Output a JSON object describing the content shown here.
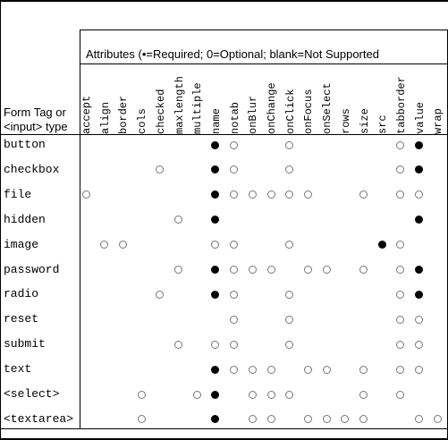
{
  "caption": "Attributes (•=Required; 0=Optional; blank=Not Supported",
  "left_header": [
    "Form Tag or",
    "<input> type"
  ],
  "attributes": [
    "accept",
    "align",
    "border",
    "cols",
    "checked",
    "maxlength",
    "multiple",
    "name",
    "notab",
    "onBlur",
    "onChange",
    "onClick",
    "onFocus",
    "onSelect",
    "rows",
    "size",
    "src",
    "tabborder",
    "value",
    "wrap"
  ],
  "rows": [
    {
      "label": "button",
      "cells": {
        "name": "R",
        "notab": "O",
        "onClick": "O",
        "tabborder": "O",
        "value": "R"
      }
    },
    {
      "label": "checkbox",
      "cells": {
        "checked": "O",
        "name": "R",
        "notab": "O",
        "onClick": "O",
        "tabborder": "O",
        "value": "R"
      }
    },
    {
      "label": "file",
      "cells": {
        "accept": "O",
        "name": "R",
        "notab": "O",
        "onBlur": "O",
        "onChange": "O",
        "onClick": "O",
        "onFocus": "O",
        "size": "O",
        "tabborder": "O",
        "value": "O"
      }
    },
    {
      "label": "hidden",
      "cells": {
        "maxlength": "O",
        "name": "R",
        "value": "R"
      }
    },
    {
      "label": "image",
      "cells": {
        "align": "O",
        "border": "O",
        "name": "O",
        "notab": "O",
        "onClick": "O",
        "src": "R",
        "tabborder": "O"
      }
    },
    {
      "label": "password",
      "cells": {
        "maxlength": "O",
        "name": "R",
        "notab": "O",
        "onBlur": "O",
        "onChange": "O",
        "onFocus": "O",
        "onSelect": "O",
        "size": "O",
        "tabborder": "O",
        "value": "R"
      }
    },
    {
      "label": "radio",
      "cells": {
        "checked": "O",
        "name": "R",
        "notab": "O",
        "onClick": "O",
        "tabborder": "O",
        "value": "R"
      }
    },
    {
      "label": "reset",
      "cells": {
        "notab": "O",
        "onClick": "O",
        "tabborder": "O",
        "value": "O"
      }
    },
    {
      "label": "submit",
      "cells": {
        "maxlength": "O",
        "name": "O",
        "notab": "O",
        "onClick": "O",
        "tabborder": "O",
        "value": "O"
      }
    },
    {
      "label": "text",
      "cells": {
        "name": "R",
        "notab": "O",
        "onBlur": "O",
        "onChange": "O",
        "onFocus": "O",
        "onSelect": "O",
        "size": "O",
        "tabborder": "O",
        "value": "O"
      }
    },
    {
      "label": "<select>",
      "cells": {
        "cols": "O",
        "multiple": "O",
        "name": "R",
        "onBlur": "O",
        "onChange": "O",
        "onClick": "O",
        "size": "O",
        "tabborder": "O"
      }
    },
    {
      "label": "<textarea>",
      "cells": {
        "cols": "O",
        "name": "R",
        "onBlur": "O",
        "onChange": "O",
        "onFocus": "O",
        "onSelect": "O",
        "rows": "O",
        "size": "O",
        "value": "O",
        "wrap": "O"
      }
    }
  ]
}
